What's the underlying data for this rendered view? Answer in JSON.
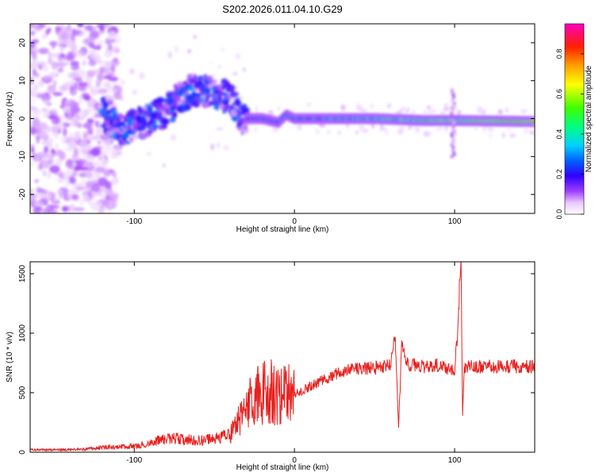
{
  "figure": {
    "title": "S202.2026.011.04.10.G29"
  },
  "chart_data": [
    {
      "type": "heatmap",
      "xlabel": "Height of straight line (km)",
      "ylabel": "Frequency (Hz)",
      "xlim": [
        -165,
        150
      ],
      "ylim": [
        -25,
        25
      ],
      "x_ticks": [
        -100,
        0,
        100
      ],
      "y_ticks": [
        -20,
        -10,
        0,
        10,
        20
      ],
      "ridge": {
        "description_points": [
          [
            -118,
            1
          ],
          [
            -110,
            -3
          ],
          [
            -100,
            -2
          ],
          [
            -90,
            0
          ],
          [
            -80,
            2
          ],
          [
            -70,
            6
          ],
          [
            -60,
            8
          ],
          [
            -50,
            7
          ],
          [
            -40,
            5
          ],
          [
            -32,
            0
          ],
          [
            -20,
            0
          ],
          [
            -10,
            -1
          ],
          [
            -5,
            1
          ],
          [
            0,
            0
          ],
          [
            20,
            0
          ],
          [
            50,
            0
          ],
          [
            80,
            -0.5
          ],
          [
            100,
            -0.5
          ],
          [
            150,
            -0.8
          ]
        ],
        "peak_amplitude_segment": [
          -30,
          150
        ]
      },
      "colorbar": {
        "label": "Normalized spectral amplitude",
        "ticks": [
          0.0,
          0.2,
          0.4,
          0.6,
          0.8
        ],
        "range": [
          0,
          0.95
        ],
        "colors": [
          "#ffffff",
          "#e9c8ff",
          "#a040ff",
          "#3000ff",
          "#0060ff",
          "#00d0ff",
          "#00ff80",
          "#40ff00",
          "#ffff00",
          "#ffa000",
          "#ff2000",
          "#ff00c0"
        ]
      }
    },
    {
      "type": "line",
      "xlabel": "Height of straight line (km)",
      "ylabel": "SNR (10 * v/v)",
      "xlim": [
        -165,
        150
      ],
      "ylim": [
        0,
        1600
      ],
      "x_ticks": [
        -100,
        0,
        100
      ],
      "y_ticks": [
        0,
        500,
        1000,
        1500
      ],
      "color": "#e8211f",
      "series": [
        {
          "x": [
            -165,
            -150,
            -130,
            -120,
            -100,
            -90,
            -80,
            -70,
            -60,
            -50,
            -40,
            -35,
            -30,
            -25,
            -20,
            -15,
            -10,
            0,
            10,
            20,
            30,
            40,
            50,
            55,
            60,
            62,
            63,
            65,
            67,
            70,
            80,
            90,
            95,
            100,
            102,
            103,
            104,
            105,
            106,
            110,
            120,
            130,
            140,
            150
          ],
          "y": [
            20,
            20,
            25,
            40,
            50,
            80,
            120,
            110,
            100,
            110,
            150,
            250,
            400,
            450,
            500,
            520,
            480,
            480,
            560,
            620,
            680,
            700,
            710,
            720,
            730,
            900,
            1000,
            200,
            900,
            740,
            720,
            730,
            700,
            700,
            1000,
            1400,
            1600,
            300,
            700,
            720,
            720,
            720,
            720,
            720
          ]
        }
      ]
    }
  ]
}
